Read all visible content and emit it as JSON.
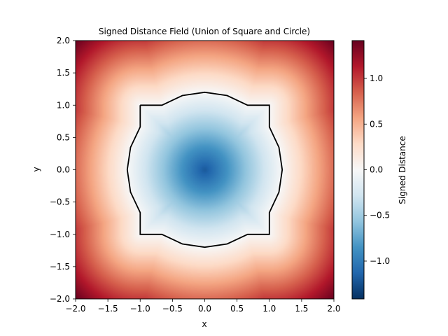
{
  "chart_data": {
    "type": "heatmap",
    "title": "Signed Distance Field (Union of Square and Circle)",
    "xlabel": "x",
    "ylabel": "y",
    "xlim": [
      -2.0,
      2.0
    ],
    "ylim": [
      -2.0,
      2.0
    ],
    "x_ticks": [
      "−2.0",
      "−1.5",
      "−1.0",
      "−0.5",
      "0.0",
      "0.5",
      "1.0",
      "1.5",
      "2.0"
    ],
    "y_ticks": [
      "−2.0",
      "−1.5",
      "−1.0",
      "−0.5",
      "0.0",
      "0.5",
      "1.0",
      "1.5",
      "2.0"
    ],
    "x_tick_values": [
      -2.0,
      -1.5,
      -1.0,
      -0.5,
      0.0,
      0.5,
      1.0,
      1.5,
      2.0
    ],
    "y_tick_values": [
      -2.0,
      -1.5,
      -1.0,
      -0.5,
      0.0,
      0.5,
      1.0,
      1.5,
      2.0
    ],
    "field": {
      "description_shape": "union",
      "square_half_size": 1.0,
      "circle_radius": 1.2,
      "center": [
        0.0,
        0.0
      ]
    },
    "contour_level": 0.0,
    "colormap": "RdBu_r",
    "color_range": [
      -1.414,
      1.414
    ],
    "colorbar": {
      "label": "Signed Distance",
      "ticks": [
        "−1.0",
        "−0.5",
        "0.0",
        "0.5",
        "1.0"
      ],
      "tick_values": [
        -1.0,
        -0.5,
        0.0,
        0.5,
        1.0
      ]
    },
    "grid": false
  }
}
